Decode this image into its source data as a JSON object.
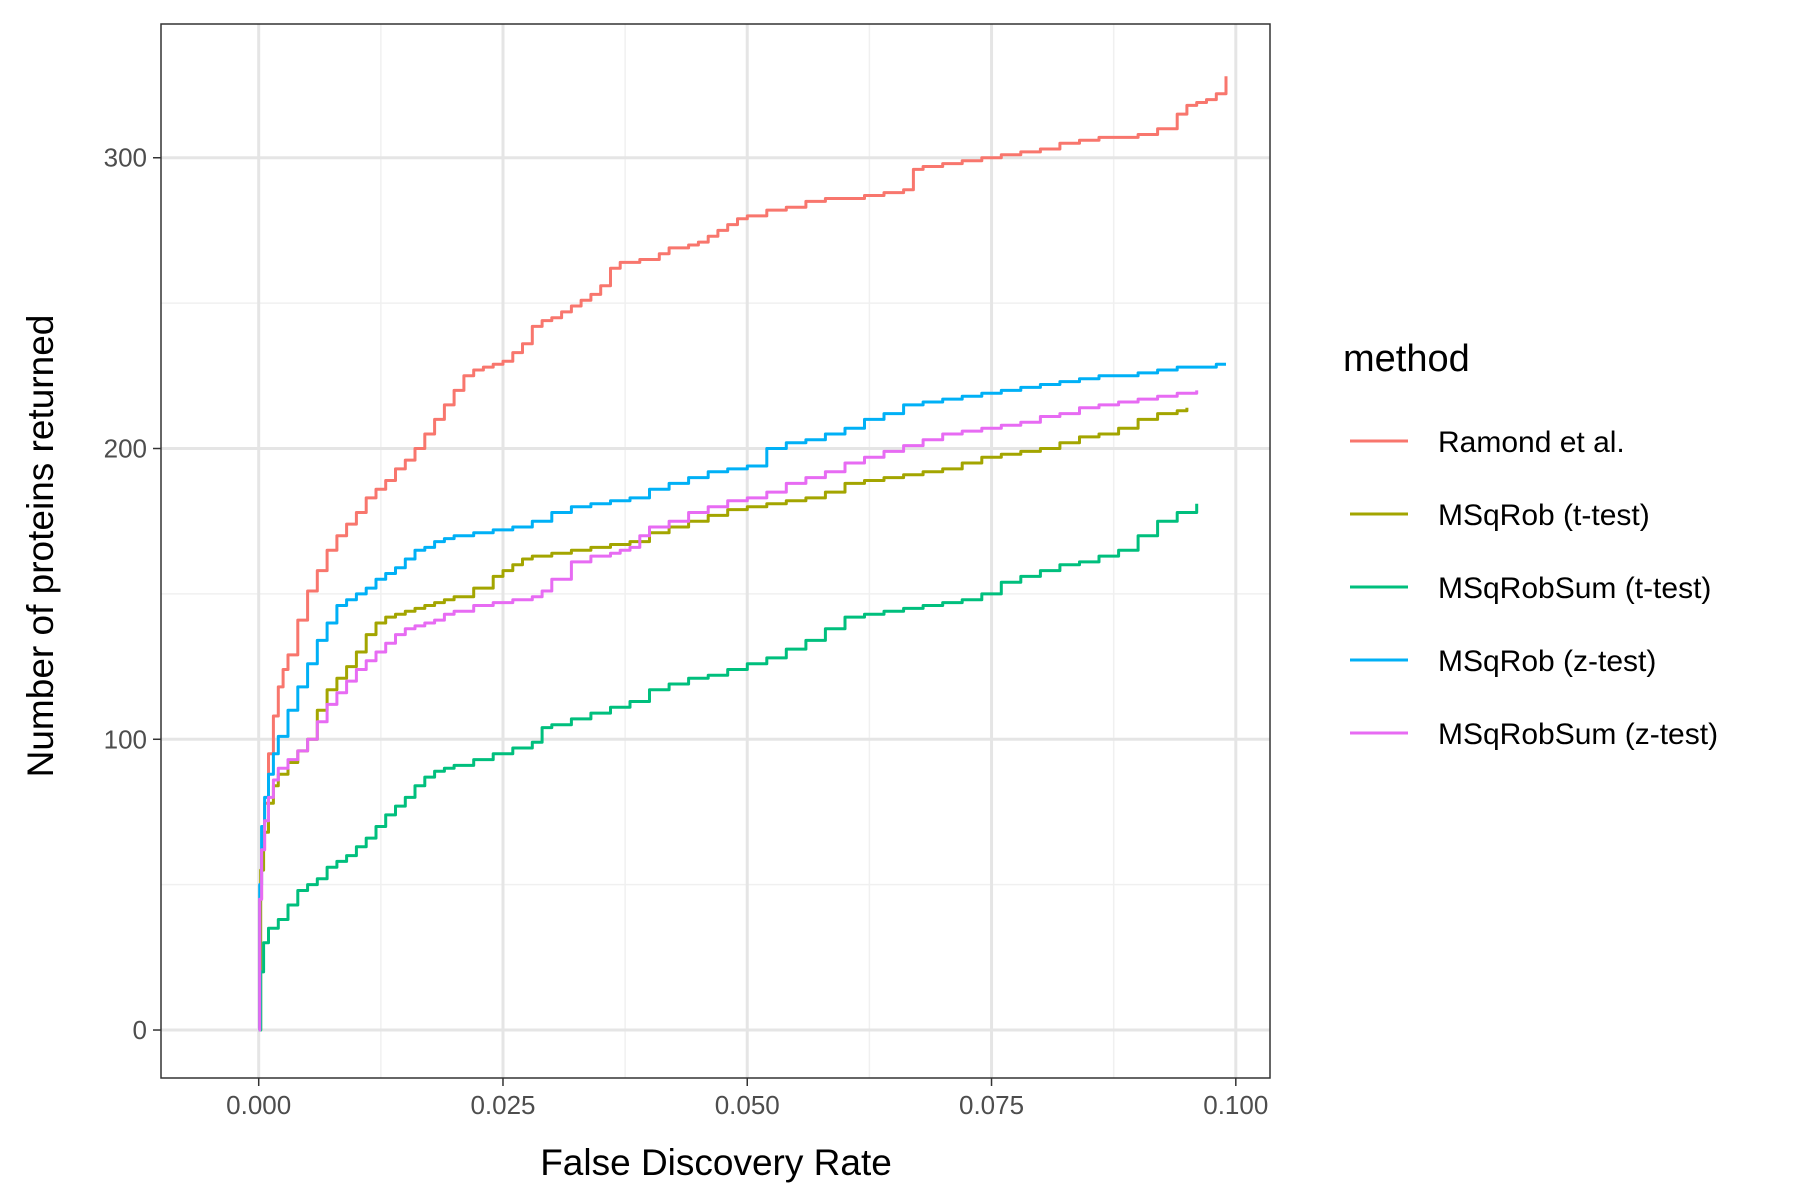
{
  "chart_data": {
    "type": "line",
    "xlabel": "False Discovery Rate",
    "ylabel": "Number of proteins returned",
    "xlim": [
      -0.01,
      0.1035
    ],
    "ylim": [
      -16.5,
      346
    ],
    "x_ticks": [
      0.0,
      0.025,
      0.05,
      0.075,
      0.1
    ],
    "x_tick_labels": [
      "0.000",
      "0.025",
      "0.050",
      "0.075",
      "0.100"
    ],
    "x_minor_ticks": [
      0.0125,
      0.0375,
      0.0625,
      0.0875
    ],
    "y_ticks": [
      0,
      100,
      200,
      300
    ],
    "y_tick_labels": [
      "0",
      "100",
      "200",
      "300"
    ],
    "y_minor_ticks": [
      50,
      150,
      250
    ],
    "grid": true,
    "legend": {
      "title": "method",
      "position": "right"
    },
    "series": [
      {
        "name": "Ramond et al.",
        "color": "#F8766D",
        "x": [
          0,
          0.0001,
          0.0003,
          0.0006,
          0.001,
          0.0015,
          0.002,
          0.0025,
          0.003,
          0.004,
          0.005,
          0.006,
          0.007,
          0.008,
          0.009,
          0.01,
          0.011,
          0.012,
          0.013,
          0.014,
          0.015,
          0.016,
          0.017,
          0.018,
          0.019,
          0.02,
          0.021,
          0.022,
          0.023,
          0.024,
          0.025,
          0.026,
          0.027,
          0.028,
          0.029,
          0.03,
          0.031,
          0.032,
          0.033,
          0.034,
          0.035,
          0.036,
          0.037,
          0.038,
          0.039,
          0.04,
          0.041,
          0.042,
          0.043,
          0.044,
          0.045,
          0.046,
          0.047,
          0.048,
          0.049,
          0.05,
          0.052,
          0.054,
          0.056,
          0.058,
          0.06,
          0.062,
          0.064,
          0.066,
          0.067,
          0.068,
          0.07,
          0.072,
          0.074,
          0.076,
          0.078,
          0.08,
          0.082,
          0.084,
          0.086,
          0.088,
          0.09,
          0.092,
          0.094,
          0.095,
          0.096,
          0.097,
          0.098,
          0.099
        ],
        "values": [
          0,
          45,
          62,
          78,
          95,
          108,
          118,
          124,
          129,
          141,
          151,
          158,
          165,
          170,
          174,
          178,
          183,
          186,
          189,
          193,
          196,
          200,
          205,
          210,
          215,
          220,
          225,
          227,
          228,
          229,
          230,
          233,
          236,
          242,
          244,
          245,
          247,
          249,
          251,
          253,
          256,
          262,
          264,
          264,
          265,
          265,
          267,
          269,
          269,
          270,
          271,
          273,
          275,
          277,
          279,
          280,
          282,
          283,
          285,
          286,
          286,
          287,
          288,
          289,
          296,
          297,
          298,
          299,
          300,
          301,
          302,
          303,
          305,
          306,
          307,
          307,
          308,
          310,
          315,
          318,
          319,
          320,
          322,
          328
        ]
      },
      {
        "name": "MSqRob (t-test)",
        "color": "#A3A500",
        "x": [
          0,
          0.0002,
          0.0005,
          0.001,
          0.0015,
          0.002,
          0.003,
          0.004,
          0.005,
          0.006,
          0.007,
          0.008,
          0.009,
          0.01,
          0.011,
          0.012,
          0.013,
          0.014,
          0.015,
          0.016,
          0.017,
          0.018,
          0.019,
          0.02,
          0.022,
          0.024,
          0.025,
          0.026,
          0.027,
          0.028,
          0.03,
          0.032,
          0.034,
          0.036,
          0.038,
          0.04,
          0.042,
          0.044,
          0.046,
          0.048,
          0.05,
          0.052,
          0.054,
          0.056,
          0.058,
          0.06,
          0.062,
          0.064,
          0.066,
          0.068,
          0.07,
          0.072,
          0.074,
          0.076,
          0.078,
          0.08,
          0.082,
          0.084,
          0.086,
          0.088,
          0.09,
          0.092,
          0.094,
          0.095
        ],
        "values": [
          0,
          55,
          68,
          78,
          84,
          88,
          92,
          96,
          100,
          110,
          117,
          121,
          125,
          130,
          136,
          140,
          142,
          143,
          144,
          145,
          146,
          147,
          148,
          149,
          152,
          156,
          158,
          160,
          162,
          163,
          164,
          165,
          166,
          167,
          168,
          171,
          173,
          175,
          177,
          179,
          180,
          181,
          182,
          183,
          185,
          188,
          189,
          190,
          191,
          192,
          193,
          195,
          197,
          198,
          199,
          200,
          202,
          204,
          205,
          207,
          210,
          212,
          213,
          214
        ]
      },
      {
        "name": "MSqRobSum (t-test)",
        "color": "#00BF7D",
        "x": [
          0,
          0.0002,
          0.0005,
          0.001,
          0.002,
          0.003,
          0.004,
          0.005,
          0.006,
          0.007,
          0.008,
          0.009,
          0.01,
          0.011,
          0.012,
          0.013,
          0.014,
          0.015,
          0.016,
          0.017,
          0.018,
          0.019,
          0.02,
          0.022,
          0.024,
          0.026,
          0.028,
          0.029,
          0.03,
          0.032,
          0.034,
          0.036,
          0.038,
          0.04,
          0.042,
          0.044,
          0.046,
          0.048,
          0.05,
          0.052,
          0.054,
          0.056,
          0.058,
          0.06,
          0.062,
          0.064,
          0.066,
          0.068,
          0.07,
          0.072,
          0.074,
          0.076,
          0.078,
          0.08,
          0.082,
          0.084,
          0.086,
          0.088,
          0.09,
          0.092,
          0.094,
          0.096
        ],
        "values": [
          0,
          20,
          30,
          35,
          38,
          43,
          48,
          50,
          52,
          56,
          58,
          60,
          63,
          66,
          70,
          74,
          77,
          80,
          84,
          87,
          89,
          90,
          91,
          93,
          95,
          97,
          99,
          104,
          105,
          107,
          109,
          111,
          113,
          117,
          119,
          121,
          122,
          124,
          126,
          128,
          131,
          134,
          138,
          142,
          143,
          144,
          145,
          146,
          147,
          148,
          150,
          154,
          156,
          158,
          160,
          161,
          163,
          165,
          170,
          175,
          178,
          181
        ]
      },
      {
        "name": "MSqRob (z-test)",
        "color": "#00B0F6",
        "x": [
          0,
          0.0001,
          0.0003,
          0.0006,
          0.001,
          0.0015,
          0.002,
          0.003,
          0.004,
          0.005,
          0.006,
          0.007,
          0.008,
          0.009,
          0.01,
          0.011,
          0.012,
          0.013,
          0.014,
          0.015,
          0.016,
          0.017,
          0.018,
          0.019,
          0.02,
          0.022,
          0.024,
          0.026,
          0.028,
          0.03,
          0.032,
          0.034,
          0.036,
          0.038,
          0.04,
          0.042,
          0.044,
          0.046,
          0.048,
          0.05,
          0.052,
          0.054,
          0.056,
          0.058,
          0.06,
          0.062,
          0.064,
          0.066,
          0.068,
          0.07,
          0.072,
          0.074,
          0.076,
          0.078,
          0.08,
          0.082,
          0.084,
          0.086,
          0.088,
          0.09,
          0.092,
          0.094,
          0.096,
          0.098,
          0.099
        ],
        "values": [
          0,
          50,
          70,
          80,
          88,
          95,
          101,
          110,
          118,
          126,
          134,
          140,
          146,
          148,
          150,
          152,
          155,
          157,
          159,
          162,
          165,
          166,
          168,
          169,
          170,
          171,
          172,
          173,
          175,
          178,
          180,
          181,
          182,
          183,
          186,
          188,
          190,
          192,
          193,
          194,
          200,
          202,
          203,
          205,
          207,
          210,
          212,
          215,
          216,
          217,
          218,
          219,
          220,
          221,
          222,
          223,
          224,
          225,
          225,
          226,
          227,
          228,
          228,
          229,
          229
        ]
      },
      {
        "name": "MSqRobSum (z-test)",
        "color": "#E76BF3",
        "x": [
          0,
          0.0001,
          0.0003,
          0.0006,
          0.001,
          0.0015,
          0.002,
          0.003,
          0.004,
          0.005,
          0.006,
          0.007,
          0.008,
          0.009,
          0.01,
          0.011,
          0.012,
          0.013,
          0.014,
          0.015,
          0.016,
          0.017,
          0.018,
          0.019,
          0.02,
          0.022,
          0.024,
          0.026,
          0.028,
          0.029,
          0.03,
          0.032,
          0.034,
          0.036,
          0.037,
          0.038,
          0.039,
          0.04,
          0.042,
          0.044,
          0.046,
          0.048,
          0.05,
          0.052,
          0.054,
          0.056,
          0.058,
          0.06,
          0.062,
          0.064,
          0.066,
          0.068,
          0.07,
          0.072,
          0.074,
          0.076,
          0.078,
          0.08,
          0.082,
          0.084,
          0.086,
          0.088,
          0.09,
          0.092,
          0.094,
          0.096
        ],
        "values": [
          0,
          45,
          62,
          72,
          80,
          86,
          90,
          93,
          96,
          100,
          106,
          112,
          116,
          120,
          124,
          127,
          130,
          133,
          136,
          138,
          139,
          140,
          141,
          143,
          144,
          146,
          147,
          148,
          149,
          151,
          155,
          161,
          163,
          164,
          165,
          166,
          170,
          173,
          175,
          178,
          180,
          182,
          183,
          185,
          188,
          190,
          192,
          195,
          197,
          199,
          201,
          203,
          205,
          206,
          207,
          208,
          209,
          211,
          212,
          214,
          215,
          216,
          217,
          218,
          219,
          220
        ]
      }
    ]
  }
}
